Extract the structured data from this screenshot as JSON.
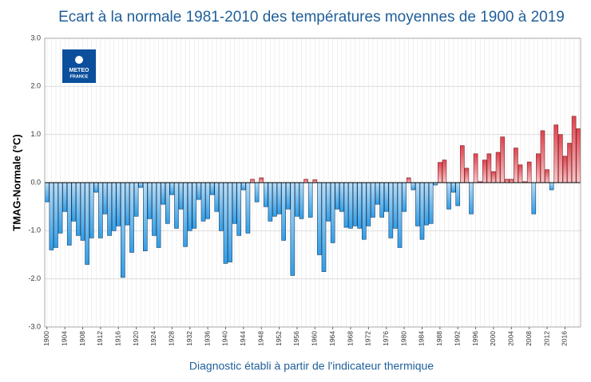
{
  "chart_data": {
    "type": "bar",
    "title": "Ecart à la normale 1981-2010 des températures moyennes de 1900 à 2019",
    "y_label": "TMAG-Normale (°C)",
    "x_label": "Diagnostic établi à partir de l'indicateur thermique",
    "logo_lines": [
      "METEO",
      "FRANCE"
    ],
    "x": [
      1900,
      1901,
      1902,
      1903,
      1904,
      1905,
      1906,
      1907,
      1908,
      1909,
      1910,
      1911,
      1912,
      1913,
      1914,
      1915,
      1916,
      1917,
      1918,
      1919,
      1920,
      1921,
      1922,
      1923,
      1924,
      1925,
      1926,
      1927,
      1928,
      1929,
      1930,
      1931,
      1932,
      1933,
      1934,
      1935,
      1936,
      1937,
      1938,
      1939,
      1940,
      1941,
      1942,
      1943,
      1944,
      1945,
      1946,
      1947,
      1948,
      1949,
      1950,
      1951,
      1952,
      1953,
      1954,
      1955,
      1956,
      1957,
      1958,
      1959,
      1960,
      1961,
      1962,
      1963,
      1964,
      1965,
      1966,
      1967,
      1968,
      1969,
      1970,
      1971,
      1972,
      1973,
      1974,
      1975,
      1976,
      1977,
      1978,
      1979,
      1980,
      1981,
      1982,
      1983,
      1984,
      1985,
      1986,
      1987,
      1988,
      1989,
      1990,
      1991,
      1992,
      1993,
      1994,
      1995,
      1996,
      1997,
      1998,
      1999,
      2000,
      2001,
      2002,
      2003,
      2004,
      2005,
      2006,
      2007,
      2008,
      2009,
      2010,
      2011,
      2012,
      2013,
      2014,
      2015,
      2016,
      2017,
      2018,
      2019
    ],
    "values": [
      -0.4,
      -1.4,
      -1.35,
      -1.05,
      -0.6,
      -1.3,
      -0.8,
      -1.1,
      -1.2,
      -1.7,
      -1.15,
      -0.2,
      -1.15,
      -0.65,
      -1.1,
      -1.0,
      -0.9,
      -1.97,
      -0.88,
      -1.45,
      -0.7,
      -0.1,
      -1.42,
      -0.75,
      -1.1,
      -1.35,
      -0.45,
      -0.85,
      -0.25,
      -0.95,
      -0.55,
      -1.33,
      -1.0,
      -0.95,
      -0.35,
      -0.8,
      -0.75,
      -0.25,
      -0.6,
      -1.0,
      -1.68,
      -1.65,
      -0.85,
      -1.1,
      -0.15,
      -1.05,
      0.07,
      -0.4,
      0.1,
      -0.5,
      -0.8,
      -0.7,
      -0.65,
      -1.2,
      -0.55,
      -1.93,
      -0.7,
      -0.75,
      0.07,
      -0.72,
      0.06,
      -1.5,
      -1.85,
      -0.8,
      -1.25,
      -0.55,
      -0.6,
      -0.93,
      -0.95,
      -0.9,
      -0.95,
      -1.18,
      -0.9,
      -0.72,
      -0.45,
      -0.72,
      -0.6,
      -1.15,
      -0.95,
      -1.35,
      -0.6,
      0.1,
      -0.15,
      -0.9,
      -1.18,
      -0.88,
      -0.85,
      -0.05,
      0.42,
      0.47,
      -0.55,
      -0.2,
      -0.48,
      0.77,
      0.3,
      -0.65,
      0.6,
      0.02,
      0.47,
      0.6,
      0.23,
      0.63,
      0.95,
      0.07,
      0.07,
      0.72,
      0.37,
      0.02,
      0.43,
      -0.65,
      0.6,
      1.08,
      0.27,
      -0.15,
      1.2,
      1.0,
      0.55,
      0.82,
      1.38,
      1.12
    ],
    "colors": {
      "negative": "#2f9ee8",
      "positive": "#e0434d"
    },
    "xlim": [
      1899.5,
      2019.5
    ],
    "xticks": [
      1900,
      1904,
      1908,
      1912,
      1916,
      1920,
      1924,
      1928,
      1932,
      1936,
      1940,
      1944,
      1948,
      1952,
      1956,
      1960,
      1964,
      1968,
      1972,
      1976,
      1980,
      1984,
      1988,
      1992,
      1996,
      2000,
      2004,
      2008,
      2012,
      2016
    ],
    "ylim": [
      -3,
      3
    ],
    "yticks": [
      {
        "value": -3,
        "label": "-3.0"
      },
      {
        "value": -2,
        "label": "-2.0"
      },
      {
        "value": -1,
        "label": "-1.0"
      },
      {
        "value": 0,
        "label": "0.0"
      },
      {
        "value": 1,
        "label": "1.0"
      },
      {
        "value": 2,
        "label": "2.0"
      },
      {
        "value": 3,
        "label": "3.0"
      }
    ],
    "grid": true
  }
}
